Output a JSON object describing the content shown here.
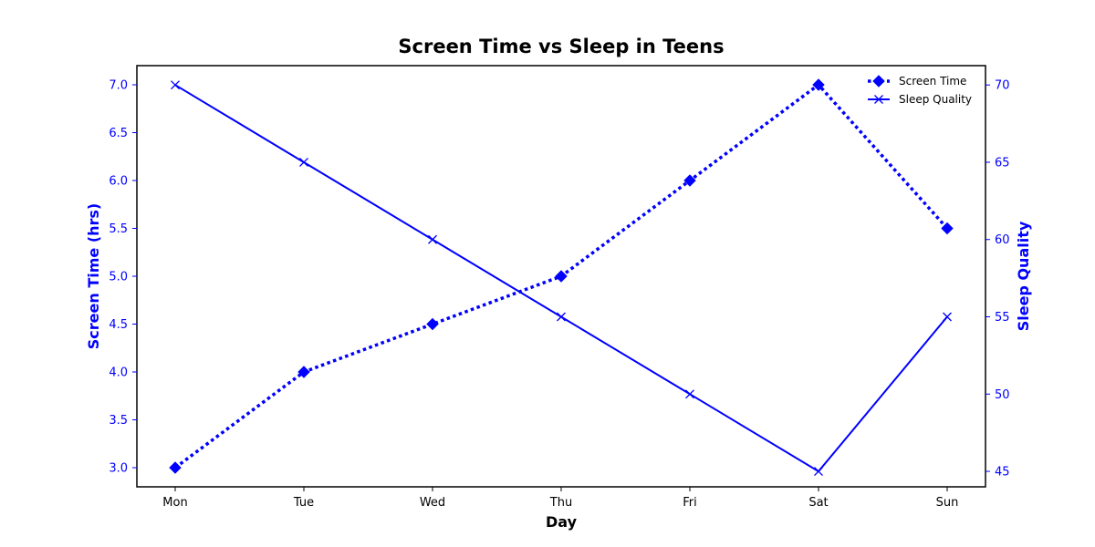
{
  "chart_data": {
    "type": "line",
    "title": "Screen Time vs Sleep in Teens",
    "xlabel": "Day",
    "categories": [
      "Mon",
      "Tue",
      "Wed",
      "Thu",
      "Fri",
      "Sat",
      "Sun"
    ],
    "series": [
      {
        "name": "Screen Time",
        "axis": "left",
        "values": [
          3.0,
          4.0,
          4.5,
          5.0,
          6.0,
          7.0,
          5.5
        ],
        "line_style": "dotted",
        "marker": "diamond",
        "color": "#0000ff"
      },
      {
        "name": "Sleep Quality",
        "axis": "right",
        "values": [
          70,
          65,
          60,
          55,
          50,
          45,
          55
        ],
        "line_style": "solid",
        "marker": "x",
        "color": "#0000ff"
      }
    ],
    "y_left": {
      "label": "Screen Time (hrs)",
      "range": [
        2.8,
        7.2
      ],
      "ticks": [
        "3.0",
        "3.5",
        "4.0",
        "4.5",
        "5.0",
        "5.5",
        "6.0",
        "6.5",
        "7.0"
      ],
      "color": "#0000ff"
    },
    "y_right": {
      "label": "Sleep Quality",
      "range": [
        44.0,
        71.25
      ],
      "ticks": [
        "45",
        "50",
        "55",
        "60",
        "65",
        "70"
      ],
      "color": "#0000ff"
    },
    "legend_position": "top-right",
    "grid": false
  }
}
